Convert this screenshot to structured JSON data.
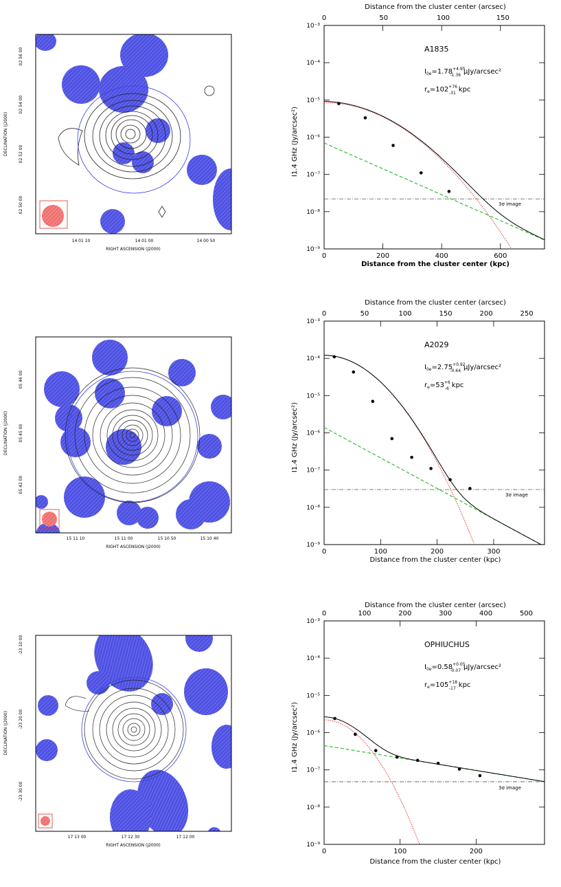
{
  "panels": [
    {
      "map": {
        "ra_label": "RIGHT ASCENSION (J2000)",
        "dec_label": "DECLINATION (J2000)",
        "ra_ticks": [
          "14 01 10",
          "14 01 00",
          "14 00 50"
        ],
        "dec_ticks": [
          "02 56 00",
          "02 54 00",
          "02 52 00",
          "02 50 00"
        ]
      },
      "chart_data": {
        "type": "line",
        "title": "A1835",
        "annotation_i0": "I0=1.78 μJy/arcsec²",
        "i0_value": 1.78,
        "i0_err_plus": 4.95,
        "i0_err_minus": 1.36,
        "i0_prefix": "I",
        "i0_sub": "0e",
        "i0_eq": "=1.78",
        "i0_sup": "+4.95",
        "i0_inf": "-1.36",
        "i0_units": "μJy/arcsec²",
        "re_prefix": "r",
        "re_sub": "e",
        "re_eq": "=102",
        "re_sup": "+76",
        "re_inf": "-31",
        "re_units": "kpc",
        "xlabel": "Distance from the cluster center (kpc)",
        "x2label": "Distance from the cluster center (arcsec)",
        "ylabel": "I1.4 GHz (Jy/arcsec²)",
        "xlim": [
          0,
          750
        ],
        "ylim_log": [
          -9,
          -3
        ],
        "xticks": [
          0,
          200,
          400,
          600
        ],
        "xticks_top": [
          0,
          50,
          100,
          150
        ],
        "arcsec_max": 185,
        "yticks": [
          "10⁻⁹",
          "10⁻⁸",
          "10⁻⁷",
          "10⁻⁶",
          "10⁻⁵",
          "10⁻⁴",
          "10⁻³"
        ],
        "points": [
          {
            "x": 50,
            "y": 8e-06
          },
          {
            "x": 140,
            "y": 3.3e-06
          },
          {
            "x": 235,
            "y": 6e-07
          },
          {
            "x": 330,
            "y": 1.1e-07
          },
          {
            "x": 425,
            "y": 3.5e-08
          }
        ],
        "threshold": {
          "value": 2.2e-08,
          "label": "3σ image"
        },
        "model": {
          "core_amp": 8.5e-06,
          "core_rc": 150,
          "halo_amp": 7e-07,
          "halo_r0": 125
        },
        "series": [
          {
            "name": "total fit",
            "color": "#000000"
          },
          {
            "name": "core component",
            "color": "#e03030"
          },
          {
            "name": "halo component",
            "color": "#2fbf2f"
          }
        ]
      }
    },
    {
      "map": {
        "ra_label": "RIGHT ASCENSION (J2000)",
        "dec_label": "DECLINATION (J2000)",
        "ra_ticks": [
          "15 11 10",
          "15 11 00",
          "15 10 50",
          "15 10 40"
        ],
        "dec_ticks": [
          "05 46 00",
          "05 45 00",
          "05 42 00"
        ]
      },
      "chart_data": {
        "type": "line",
        "title": "A2029",
        "annotation_i0": "I0=2.75 μJy/arcsec²",
        "i0_value": 2.75,
        "i0_err_plus": 0.92,
        "i0_err_minus": 0.64,
        "i0_prefix": "I",
        "i0_sub": "0e",
        "i0_eq": "=2.75",
        "i0_sup": "+0.92",
        "i0_inf": "-0.64",
        "i0_units": "μJy/arcsec²",
        "re_prefix": "r",
        "re_sub": "e",
        "re_eq": "=53",
        "re_sup": "+6",
        "re_inf": "-6",
        "re_units": "kpc",
        "xlabel": "Distance from the cluster center (kpc)",
        "x2label": "Distance from the cluster center (arcsec)",
        "ylabel": "I1.4 GHz (Jy/arcsec²)",
        "xlim": [
          0,
          390
        ],
        "ylim_log": [
          -9,
          -3
        ],
        "xticks": [
          0,
          100,
          200,
          300
        ],
        "xticks_top": [
          0,
          50,
          100,
          150,
          200,
          250
        ],
        "arcsec_max": 272,
        "yticks": [
          "10⁻⁹",
          "10⁻⁸",
          "10⁻⁷",
          "10⁻⁶",
          "10⁻⁵",
          "10⁻⁴",
          "10⁻³"
        ],
        "points": [
          {
            "x": 18,
            "y": 0.00011
          },
          {
            "x": 52,
            "y": 4.3e-05
          },
          {
            "x": 86,
            "y": 7e-06
          },
          {
            "x": 120,
            "y": 7e-07
          },
          {
            "x": 155,
            "y": 2.2e-07
          },
          {
            "x": 189,
            "y": 1.1e-07
          },
          {
            "x": 223,
            "y": 5.5e-08
          },
          {
            "x": 258,
            "y": 3.2e-08
          }
        ],
        "threshold": {
          "value": 3e-08,
          "label": "3σ image"
        },
        "model": {
          "core_amp": 0.00012,
          "core_rc": 55,
          "halo_amp": 1.4e-06,
          "halo_r0": 53
        },
        "series": [
          {
            "name": "total fit",
            "color": "#000000"
          },
          {
            "name": "core component",
            "color": "#e03030"
          },
          {
            "name": "halo component",
            "color": "#2fbf2f"
          }
        ]
      }
    },
    {
      "map": {
        "ra_label": "RIGHT ASCENSION (J2000)",
        "dec_label": "DECLINATION (J2000)",
        "ra_ticks": [
          "17 13 00",
          "17 12 30",
          "17 12 00"
        ],
        "dec_ticks": [
          "-23 10 00",
          "-23 20 00",
          "-23 30 00"
        ]
      },
      "chart_data": {
        "type": "line",
        "title": "OPHIUCHUS",
        "annotation_i0": "I0=0.58 μJy/arcsec²",
        "i0_value": 0.58,
        "i0_err_plus": 0.05,
        "i0_err_minus": 0.07,
        "i0_prefix": "I",
        "i0_sub": "0e",
        "i0_eq": "=0.58",
        "i0_sup": "+0.05",
        "i0_inf": "-0.07",
        "i0_units": "μJy/arcsec²",
        "re_prefix": "r",
        "re_sub": "e",
        "re_eq": "=105",
        "re_sup": "+18",
        "re_inf": "-17",
        "re_units": "kpc",
        "xlabel": "Distance from the cluster center (kpc)",
        "x2label": "Distance from the cluster center (arcsec)",
        "ylabel": "I1.4 GHz (Jy/arcsec²)",
        "xlim": [
          0,
          290
        ],
        "ylim_log": [
          -9,
          -3
        ],
        "xticks": [
          0,
          100,
          200
        ],
        "xticks_top": [
          0,
          100,
          200,
          300,
          400,
          500
        ],
        "arcsec_max": 545,
        "yticks": [
          "10⁻⁹",
          "10⁻⁸",
          "10⁻⁷",
          "10⁻⁶",
          "10⁻⁵",
          "10⁻⁴",
          "10⁻³"
        ],
        "points": [
          {
            "x": 14,
            "y": 2.4e-06
          },
          {
            "x": 41,
            "y": 9e-07
          },
          {
            "x": 68,
            "y": 3.3e-07
          },
          {
            "x": 96,
            "y": 2.2e-07
          },
          {
            "x": 123,
            "y": 1.8e-07
          },
          {
            "x": 150,
            "y": 1.5e-07
          },
          {
            "x": 178,
            "y": 1.05e-07
          },
          {
            "x": 205,
            "y": 7e-08
          }
        ],
        "threshold": {
          "value": 4.8e-08,
          "label": "3σ image"
        },
        "model": {
          "core_amp": 2.2e-06,
          "core_rc": 32,
          "halo_amp": 4.5e-07,
          "halo_r0": 130
        },
        "series": [
          {
            "name": "total fit",
            "color": "#000000"
          },
          {
            "name": "core component",
            "color": "#e03030"
          },
          {
            "name": "halo component",
            "color": "#2fbf2f"
          }
        ]
      }
    }
  ]
}
